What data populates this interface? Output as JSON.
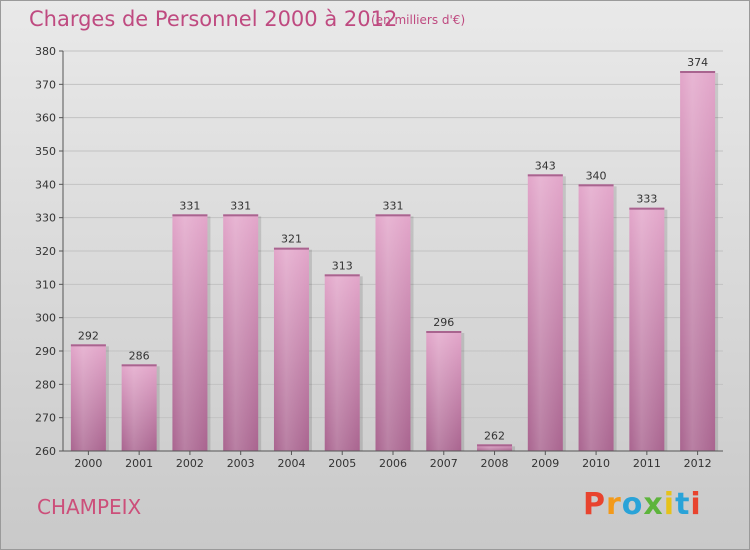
{
  "header": {
    "title": "Charges de Personnel 2000 à 2012",
    "subtitle": "(en milliers d'€)"
  },
  "footer": {
    "commune": "CHAMPEIX",
    "logo_text": "Proxiti",
    "logo_colors": [
      "#e8432e",
      "#f39a1a",
      "#2aa3d8",
      "#5db43b",
      "#e6c21a",
      "#2aa3d8",
      "#e8432e"
    ]
  },
  "colors": {
    "bar_top": "#e3a6ca",
    "bar_bottom": "#a9648f",
    "grid": "#c2c2c2",
    "axis_text": "#333333"
  },
  "chart_data": {
    "type": "bar",
    "categories": [
      "2000",
      "2001",
      "2002",
      "2003",
      "2004",
      "2005",
      "2006",
      "2007",
      "2008",
      "2009",
      "2010",
      "2011",
      "2012"
    ],
    "values": [
      292,
      286,
      331,
      331,
      321,
      313,
      331,
      296,
      262,
      343,
      340,
      333,
      374
    ],
    "ylim": [
      260,
      380
    ],
    "yticks": [
      260,
      270,
      280,
      290,
      300,
      310,
      320,
      330,
      340,
      350,
      360,
      370,
      380
    ],
    "grid": true
  }
}
